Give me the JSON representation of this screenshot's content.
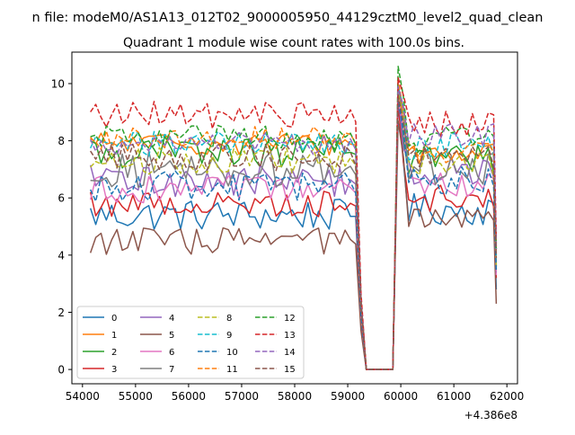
{
  "chart_data": {
    "type": "line",
    "suptitle": "n file: modeM0/AS1A13_012T02_9000005950_44129cztM0_level2_quad_clean",
    "title": "Quadrant 1 module wise count rates with 100.0s bins.",
    "xlabel": "",
    "ylabel": "",
    "x_offset_label": "+4.386e8",
    "xlim": [
      53800,
      62200
    ],
    "ylim": [
      -0.5,
      11.1
    ],
    "x_ticks": [
      54000,
      55000,
      56000,
      57000,
      58000,
      59000,
      60000,
      61000,
      62000
    ],
    "x_tick_labels": [
      "54000",
      "55000",
      "56000",
      "57000",
      "58000",
      "59000",
      "60000",
      "61000",
      "62000"
    ],
    "y_ticks": [
      0,
      2,
      4,
      6,
      8,
      10
    ],
    "y_tick_labels": [
      "0",
      "2",
      "4",
      "6",
      "8",
      "10"
    ],
    "x_segments": {
      "start": 54150,
      "step": 100,
      "first_block_end": 59150,
      "gap": [
        [
          59250,
          null
        ],
        [
          59350,
          0
        ],
        [
          59450,
          0
        ],
        [
          59550,
          0
        ],
        [
          59650,
          0
        ],
        [
          59750,
          0
        ],
        [
          59850,
          0
        ]
      ],
      "second_block_start": 59950,
      "second_block_end": 61750,
      "tail_x": 61800
    },
    "series": [
      {
        "name": "0",
        "color": "#1f77b4",
        "dash": "solid",
        "level_a": 5.4,
        "noise_a": 0.35,
        "peak": 9.6,
        "level_b": 5.6,
        "noise_b": 0.35,
        "tail": 2.8
      },
      {
        "name": "1",
        "color": "#ff7f0e",
        "dash": "solid",
        "level_a": 7.9,
        "noise_a": 0.25,
        "peak": 9.9,
        "level_b": 7.6,
        "noise_b": 0.25,
        "tail": 4.3
      },
      {
        "name": "2",
        "color": "#2ca02c",
        "dash": "solid",
        "level_a": 7.6,
        "noise_a": 0.35,
        "peak": 9.5,
        "level_b": 7.4,
        "noise_b": 0.35,
        "tail": 4.4
      },
      {
        "name": "3",
        "color": "#d62728",
        "dash": "solid",
        "level_a": 5.8,
        "noise_a": 0.3,
        "peak": 9.3,
        "level_b": 6.0,
        "noise_b": 0.3,
        "tail": 3.2
      },
      {
        "name": "4",
        "color": "#9467bd",
        "dash": "solid",
        "level_a": 6.6,
        "noise_a": 0.35,
        "peak": 9.6,
        "level_b": 6.9,
        "noise_b": 0.35,
        "tail": 3.5
      },
      {
        "name": "5",
        "color": "#8c564b",
        "dash": "solid",
        "level_a": 4.5,
        "noise_a": 0.3,
        "peak": 8.7,
        "level_b": 5.2,
        "noise_b": 0.3,
        "tail": 2.3
      },
      {
        "name": "6",
        "color": "#e377c2",
        "dash": "solid",
        "level_a": 6.3,
        "noise_a": 0.3,
        "peak": 9.5,
        "level_b": 6.5,
        "noise_b": 0.3,
        "tail": 3.3
      },
      {
        "name": "7",
        "color": "#7f7f7f",
        "dash": "solid",
        "level_a": 7.0,
        "noise_a": 0.4,
        "peak": 9.8,
        "level_b": 7.1,
        "noise_b": 0.4,
        "tail": 3.6
      },
      {
        "name": "8",
        "color": "#bcbd22",
        "dash": "dashed",
        "level_a": 7.3,
        "noise_a": 0.3,
        "peak": 9.7,
        "level_b": 7.2,
        "noise_b": 0.3,
        "tail": 3.6
      },
      {
        "name": "9",
        "color": "#17becf",
        "dash": "dashed",
        "level_a": 7.9,
        "noise_a": 0.3,
        "peak": 9.9,
        "level_b": 7.8,
        "noise_b": 0.3,
        "tail": 4.0
      },
      {
        "name": "10",
        "color": "#1f77b4",
        "dash": "dashed",
        "level_a": 6.4,
        "noise_a": 0.35,
        "peak": 9.4,
        "level_b": 6.6,
        "noise_b": 0.35,
        "tail": 3.4
      },
      {
        "name": "11",
        "color": "#ff7f0e",
        "dash": "dashed",
        "level_a": 8.1,
        "noise_a": 0.25,
        "peak": 10.1,
        "level_b": 7.6,
        "noise_b": 0.25,
        "tail": 4.1
      },
      {
        "name": "12",
        "color": "#2ca02c",
        "dash": "dashed",
        "level_a": 8.1,
        "noise_a": 0.3,
        "peak": 10.6,
        "level_b": 8.0,
        "noise_b": 0.3,
        "tail": 4.2
      },
      {
        "name": "13",
        "color": "#d62728",
        "dash": "dashed",
        "level_a": 8.9,
        "noise_a": 0.3,
        "peak": 10.2,
        "level_b": 8.6,
        "noise_b": 0.3,
        "tail": 4.6
      },
      {
        "name": "14",
        "color": "#9467bd",
        "dash": "dashed",
        "level_a": 7.9,
        "noise_a": 0.25,
        "peak": 9.9,
        "level_b": 8.2,
        "noise_b": 0.25,
        "tail": 4.2
      },
      {
        "name": "15",
        "color": "#8c564b",
        "dash": "dashed",
        "level_a": 7.4,
        "noise_a": 0.3,
        "peak": 9.6,
        "level_b": 7.4,
        "noise_b": 0.3,
        "tail": 3.9
      }
    ],
    "legend": {
      "position": "lower-left",
      "columns": 4
    }
  }
}
